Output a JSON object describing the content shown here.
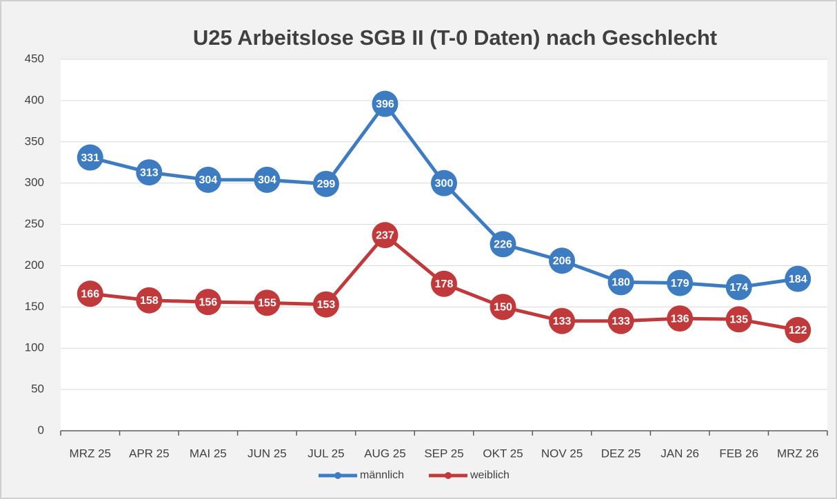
{
  "chart_data": {
    "type": "line",
    "title": "U25 Arbeitslose   SGB II  (T-0 Daten) nach Geschlecht",
    "categories": [
      "MRZ 25",
      "APR 25",
      "MAI 25",
      "JUN 25",
      "JUL 25",
      "AUG 25",
      "SEP 25",
      "OKT 25",
      "NOV 25",
      "DEZ 25",
      "JAN 26",
      "FEB 26",
      "MRZ 26"
    ],
    "series": [
      {
        "name": "männlich",
        "color": "#3e7cc1",
        "values": [
          331,
          313,
          304,
          304,
          299,
          396,
          300,
          226,
          206,
          180,
          179,
          174,
          184
        ]
      },
      {
        "name": "weiblich",
        "color": "#c0393b",
        "values": [
          166,
          158,
          156,
          155,
          153,
          237,
          178,
          150,
          133,
          133,
          136,
          135,
          122
        ]
      }
    ],
    "ylim": [
      0,
      450
    ],
    "yticks": [
      0,
      50,
      100,
      150,
      200,
      250,
      300,
      350,
      400,
      450
    ],
    "grid": true,
    "legend": "bottom"
  }
}
